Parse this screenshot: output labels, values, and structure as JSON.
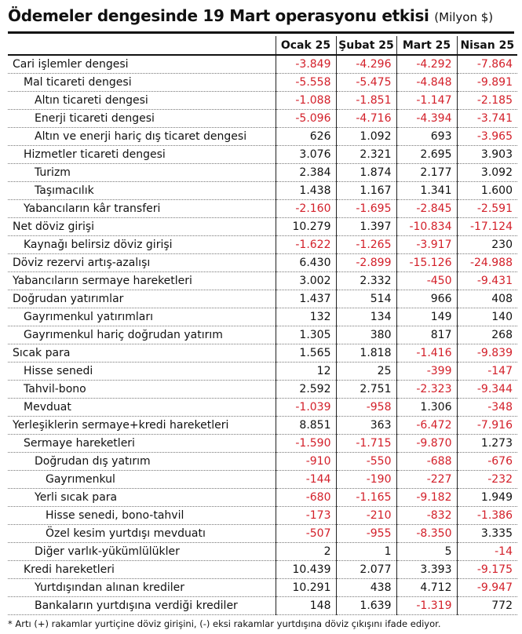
{
  "title": "Ödemeler dengesinde 19 Mart operasyonu etkisi",
  "unit": "(Milyon $)",
  "columns": [
    "Ocak 25",
    "Şubat 25",
    "Mart 25",
    "Nisan 25"
  ],
  "rows": [
    {
      "label": "Cari işlemler dengesi",
      "indent": 0,
      "values": [
        "-3.849",
        "-4.296",
        "-4.292",
        "-7.864"
      ]
    },
    {
      "label": "Mal ticareti dengesi",
      "indent": 1,
      "values": [
        "-5.558",
        "-5.475",
        "-4.848",
        "-9.891"
      ]
    },
    {
      "label": "Altın ticareti dengesi",
      "indent": 2,
      "values": [
        "-1.088",
        "-1.851",
        "-1.147",
        "-2.185"
      ]
    },
    {
      "label": "Enerji ticareti dengesi",
      "indent": 2,
      "values": [
        "-5.096",
        "-4.716",
        "-4.394",
        "-3.741"
      ]
    },
    {
      "label": "Altın ve enerji hariç dış ticaret dengesi",
      "indent": 2,
      "values": [
        "626",
        "1.092",
        "693",
        "-3.965"
      ]
    },
    {
      "label": "Hizmetler ticareti dengesi",
      "indent": 1,
      "values": [
        "3.076",
        "2.321",
        "2.695",
        "3.903"
      ]
    },
    {
      "label": "Turizm",
      "indent": 2,
      "values": [
        "2.384",
        "1.874",
        "2.177",
        "3.092"
      ]
    },
    {
      "label": "Taşımacılık",
      "indent": 2,
      "values": [
        "1.438",
        "1.167",
        "1.341",
        "1.600"
      ]
    },
    {
      "label": "Yabancıların kâr transferi",
      "indent": 1,
      "values": [
        "-2.160",
        "-1.695",
        "-2.845",
        "-2.591"
      ]
    },
    {
      "label": "Net döviz girişi",
      "indent": 0,
      "values": [
        "10.279",
        "1.397",
        "-10.834",
        "-17.124"
      ]
    },
    {
      "label": "Kaynağı belirsiz döviz girişi",
      "indent": 1,
      "values": [
        "-1.622",
        "-1.265",
        "-3.917",
        "230"
      ]
    },
    {
      "label": "Döviz rezervi artış-azalışı",
      "indent": 0,
      "values": [
        "6.430",
        "-2.899",
        "-15.126",
        "-24.988"
      ]
    },
    {
      "label": "Yabancıların sermaye hareketleri",
      "indent": 0,
      "values": [
        "3.002",
        "2.332",
        "-450",
        "-9.431"
      ]
    },
    {
      "label": "Doğrudan yatırımlar",
      "indent": 0,
      "values": [
        "1.437",
        "514",
        "966",
        "408"
      ]
    },
    {
      "label": "Gayrımenkul yatırımları",
      "indent": 1,
      "values": [
        "132",
        "134",
        "149",
        "140"
      ]
    },
    {
      "label": "Gayrımenkul hariç doğrudan yatırım",
      "indent": 1,
      "values": [
        "1.305",
        "380",
        "817",
        "268"
      ]
    },
    {
      "label": "Sıcak para",
      "indent": 0,
      "values": [
        "1.565",
        "1.818",
        "-1.416",
        "-9.839"
      ]
    },
    {
      "label": "Hisse senedi",
      "indent": 1,
      "values": [
        "12",
        "25",
        "-399",
        "-147"
      ]
    },
    {
      "label": "Tahvil-bono",
      "indent": 1,
      "values": [
        "2.592",
        "2.751",
        "-2.323",
        "-9.344"
      ]
    },
    {
      "label": "Mevduat",
      "indent": 1,
      "values": [
        "-1.039",
        "-958",
        "1.306",
        "-348"
      ]
    },
    {
      "label": "Yerleşiklerin sermaye+kredi hareketleri",
      "indent": 0,
      "values": [
        "8.851",
        "363",
        "-6.472",
        "-7.916"
      ]
    },
    {
      "label": "Sermaye hareketleri",
      "indent": 1,
      "values": [
        "-1.590",
        "-1.715",
        "-9.870",
        "1.273"
      ]
    },
    {
      "label": "Doğrudan dış yatırım",
      "indent": 2,
      "values": [
        "-910",
        "-550",
        "-688",
        "-676"
      ]
    },
    {
      "label": "Gayrımenkul",
      "indent": 3,
      "values": [
        "-144",
        "-190",
        "-227",
        "-232"
      ]
    },
    {
      "label": "Yerli sıcak para",
      "indent": 2,
      "values": [
        "-680",
        "-1.165",
        "-9.182",
        "1.949"
      ]
    },
    {
      "label": "Hisse senedi, bono-tahvil",
      "indent": 3,
      "values": [
        "-173",
        "-210",
        "-832",
        "-1.386"
      ]
    },
    {
      "label": "Özel kesim yurtdışı mevduatı",
      "indent": 3,
      "values": [
        "-507",
        "-955",
        "-8.350",
        "3.335"
      ]
    },
    {
      "label": "Diğer varlık-yükümlülükler",
      "indent": 2,
      "values": [
        "2",
        "1",
        "5",
        "-14"
      ]
    },
    {
      "label": "Kredi hareketleri",
      "indent": 1,
      "values": [
        "10.439",
        "2.077",
        "3.393",
        "-9.175"
      ]
    },
    {
      "label": "Yurtdışından alınan krediler",
      "indent": 2,
      "values": [
        "10.291",
        "438",
        "4.712",
        "-9.947"
      ]
    },
    {
      "label": "Bankaların yurtdışına verdiği krediler",
      "indent": 2,
      "values": [
        "148",
        "1.639",
        "-1.319",
        "772"
      ]
    }
  ],
  "footnote": "* Artı (+) rakamlar yurtiçine döviz girişini, (-) eksi rakamlar yurtdışına döviz çıkışını ifade ediyor.",
  "colors": {
    "negative": "#d3202a",
    "positive": "#111111"
  }
}
